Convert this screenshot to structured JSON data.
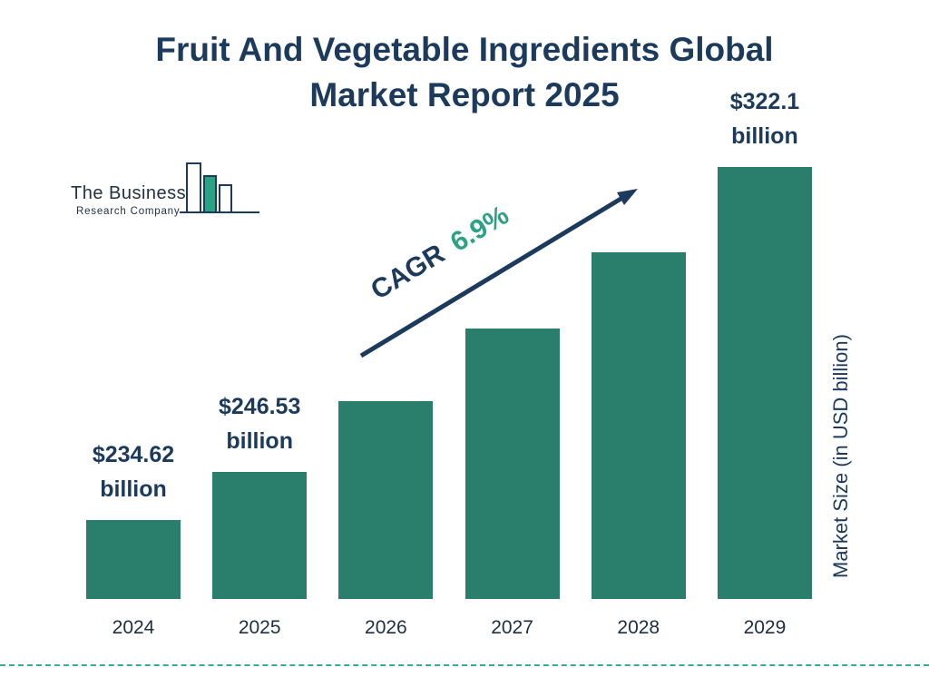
{
  "title": {
    "line1": "Fruit And Vegetable Ingredients Global",
    "line2": "Market Report 2025"
  },
  "logo": {
    "line1": "The Business",
    "line2": "Research Company"
  },
  "cagr": {
    "label": "CAGR",
    "value": "6.9%"
  },
  "chart_data": {
    "type": "bar",
    "title": "Fruit And Vegetable Ingredients Global Market Report 2025",
    "ylabel": "Market Size (in USD billion)",
    "xlabel": "",
    "categories": [
      "2024",
      "2025",
      "2026",
      "2027",
      "2028",
      "2029"
    ],
    "values": [
      234.62,
      246.53,
      264,
      282,
      301,
      322.1
    ],
    "labeled": [
      true,
      true,
      false,
      false,
      false,
      true
    ],
    "value_axis_range": [
      215,
      322.1
    ],
    "grid": false,
    "legend": false,
    "cagr_annotation": "CAGR 6.9%",
    "annotations": [
      {
        "index": 0,
        "line1": "$234.62",
        "line2": "billion"
      },
      {
        "index": 1,
        "line1": "$246.53",
        "line2": "billion"
      },
      {
        "index": 5,
        "line1": "$322.1",
        "line2": "billion"
      }
    ]
  },
  "colors": {
    "bar": "#2a7e6c",
    "title": "#1b3a5c",
    "accent_green": "#2aa283",
    "dashed_line": "#35a8a0",
    "axis_text": "#1d2f3e"
  }
}
